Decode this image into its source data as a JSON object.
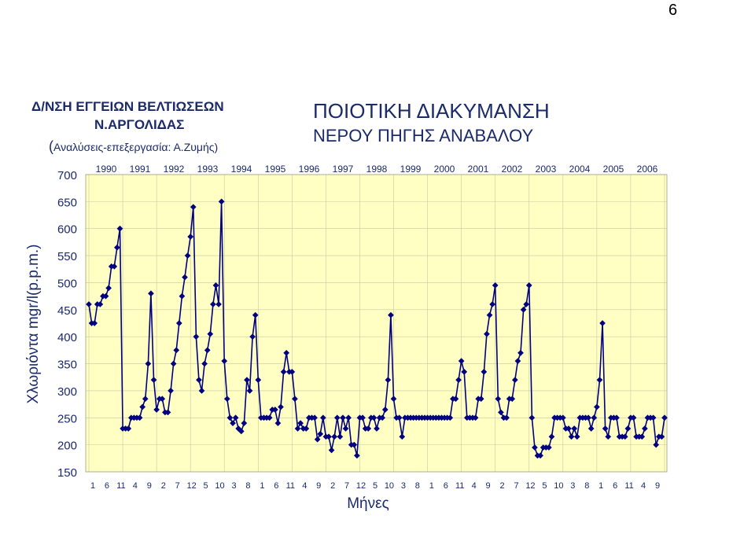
{
  "page_number": "6",
  "org": {
    "line1": "Δ/ΝΣΗ ΕΓΓΕΙΩΝ ΒΕΛΤΙΩΣΕΩΝ",
    "line2": "Ν.ΑΡΓΟΛΙΔΑΣ",
    "line3_open": "(",
    "line3_text": "Αναλύσεις-επεξεργασία: Α.Ζυμής)"
  },
  "colors": {
    "plot_background": "#ffffc4",
    "line": "#000080",
    "text": "#1b2a6b"
  },
  "chart_data": {
    "type": "line",
    "title": "ΠΟΙΟΤΙΚΗ ΔΙΑΚΥΜΑΝΣΗ",
    "subtitle": "ΝΕΡΟΥ ΠΗΓΗΣ ΑΝΑΒΑΛΟΥ",
    "ylabel": "Χλωριόντα mgr/l(p.p.m.)",
    "xlabel": "Μήνες",
    "ylim": [
      150,
      700
    ],
    "yticks": [
      150,
      200,
      250,
      300,
      350,
      400,
      450,
      500,
      550,
      600,
      650,
      700
    ],
    "grid": true,
    "x_tick_labels": [
      "1",
      "6",
      "11",
      "4",
      "9",
      "2",
      "7",
      "12",
      "5",
      "10",
      "3",
      "8",
      "1",
      "6",
      "11",
      "4",
      "9",
      "2",
      "7",
      "12",
      "5",
      "10",
      "3",
      "8",
      "1",
      "6",
      "11",
      "4",
      "9",
      "2",
      "7",
      "12",
      "5",
      "10",
      "3",
      "8",
      "1",
      "6",
      "11",
      "4",
      "9"
    ],
    "years": [
      "1990",
      "1991",
      "1992",
      "1993",
      "1994",
      "1995",
      "1996",
      "1997",
      "1998",
      "1999",
      "2000",
      "2001",
      "2002",
      "2003",
      "2004",
      "2005",
      "2006"
    ],
    "series": [
      {
        "marker": "diamond",
        "values": [
          460,
          425,
          425,
          460,
          460,
          475,
          475,
          490,
          530,
          530,
          565,
          600,
          230,
          230,
          230,
          250,
          250,
          250,
          250,
          270,
          285,
          350,
          480,
          320,
          265,
          285,
          285,
          260,
          260,
          300,
          350,
          375,
          425,
          475,
          510,
          550,
          585,
          640,
          400,
          320,
          300,
          350,
          375,
          405,
          460,
          495,
          460,
          650,
          355,
          285,
          250,
          240,
          250,
          230,
          225,
          240,
          320,
          300,
          400,
          440,
          320,
          250,
          250,
          250,
          250,
          265,
          265,
          240,
          270,
          335,
          370,
          335,
          335,
          285,
          230,
          240,
          230,
          230,
          250,
          250,
          250,
          210,
          220,
          250,
          215,
          215,
          190,
          215,
          250,
          215,
          250,
          230,
          250,
          200,
          200,
          180,
          250,
          250,
          230,
          230,
          250,
          250,
          230,
          250,
          250,
          265,
          320,
          440,
          285,
          250,
          250,
          215,
          250,
          250,
          250,
          250,
          250,
          250,
          250,
          250,
          250,
          250,
          250,
          250,
          250,
          250,
          250,
          250,
          250,
          285,
          285,
          320,
          355,
          335,
          250,
          250,
          250,
          250,
          285,
          285,
          335,
          405,
          440,
          460,
          495,
          285,
          260,
          250,
          250,
          285,
          285,
          320,
          355,
          370,
          450,
          460,
          495,
          250,
          195,
          180,
          180,
          195,
          195,
          195,
          215,
          250,
          250,
          250,
          250,
          230,
          230,
          215,
          230,
          215,
          250,
          250,
          250,
          250,
          230,
          250,
          270,
          320,
          425,
          230,
          215,
          250,
          250,
          250,
          215,
          215,
          215,
          230,
          250,
          250,
          215,
          215,
          215,
          230,
          250,
          250,
          250,
          200,
          215,
          215,
          250
        ]
      }
    ]
  }
}
